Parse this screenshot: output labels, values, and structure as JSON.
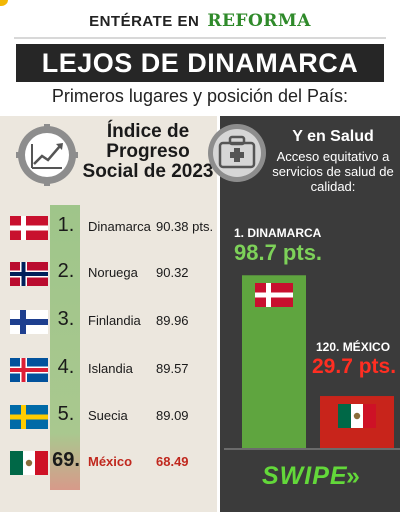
{
  "header": {
    "kicker": "ENTÉRATE EN",
    "brand": "REFORMA",
    "title": "LEJOS DE DINAMARCA",
    "subtitle": "Primeros lugares y posición del País:"
  },
  "colors": {
    "brand_green": "#2f8a2a",
    "title_bar": "#262626",
    "left_panel": "#ece7de",
    "right_panel": "#3b3b3b",
    "denmark_bar": "#5fa53f",
    "mexico_bar": "#c8241b",
    "denmark_value": "#7dd159",
    "mexico_value": "#ff2e22",
    "swipe": "#63d83a"
  },
  "footer": {
    "swipe_label": "SWIPE",
    "swipe_arrows": "»"
  },
  "chart_data": [
    {
      "type": "table",
      "title": "Índice de Progreso Social de 2023",
      "icon": "gear-graph-icon",
      "rows": [
        {
          "rank": "1.",
          "country": "Dinamarca",
          "score": "90.38 pts.",
          "value": 90.38,
          "flag": "denmark-flag-icon"
        },
        {
          "rank": "2.",
          "country": "Noruega",
          "score": "90.32",
          "value": 90.32,
          "flag": "norway-flag-icon"
        },
        {
          "rank": "3.",
          "country": "Finlandia",
          "score": "89.96",
          "value": 89.96,
          "flag": "finland-flag-icon"
        },
        {
          "rank": "4.",
          "country": "Islandia",
          "score": "89.57",
          "value": 89.57,
          "flag": "iceland-flag-icon"
        },
        {
          "rank": "5.",
          "country": "Suecia",
          "score": "89.09",
          "value": 89.09,
          "flag": "sweden-flag-icon"
        },
        {
          "rank": "69.",
          "country": "México",
          "score": "68.49",
          "value": 68.49,
          "flag": "mexico-flag-icon"
        }
      ]
    },
    {
      "type": "bar",
      "title": "Y en Salud",
      "subtitle": "Acceso equitativo a servicios de salud de calidad:",
      "icon": "medical-kit-icon",
      "ylim": [
        0,
        100
      ],
      "grid": false,
      "categories": [
        "1. DINAMARCA",
        "120. MÉXICO"
      ],
      "values": [
        98.7,
        29.7
      ],
      "value_labels": [
        "98.7 pts.",
        "29.7 pts."
      ],
      "bar_colors": [
        "#5fa53f",
        "#c8241b"
      ]
    }
  ]
}
